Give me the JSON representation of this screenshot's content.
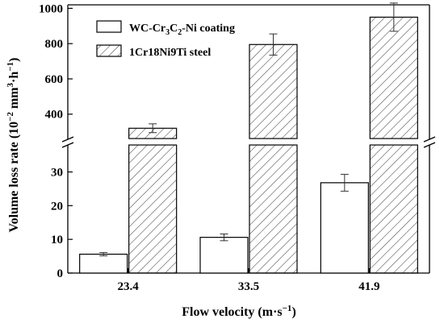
{
  "chart_data": {
    "type": "bar",
    "xlabel_main": "Flow velocity (m·s",
    "xlabel_sup": "−1",
    "xlabel_close": ")",
    "ylabel_main": "Volume loss rate (10",
    "ylabel_sup1": "−2",
    "ylabel_mid1": " mm",
    "ylabel_sup2": "3",
    "ylabel_mid2": "·h",
    "ylabel_sup3": "−1",
    "ylabel_close": ")",
    "categories": [
      "23.4",
      "33.5",
      "41.9"
    ],
    "series": [
      {
        "name": "WC-Cr3C2-Ni coating",
        "legend_parts": [
          "WC-Cr",
          "3",
          "C",
          "2",
          "-Ni coating"
        ],
        "fill": "plain",
        "values": [
          5.6,
          10.6,
          26.8
        ],
        "errors": [
          0.5,
          1.0,
          2.5
        ]
      },
      {
        "name": "1Cr18Ni9Ti steel",
        "legend_parts": [
          "1Cr18Ni9Ti steel"
        ],
        "fill": "hatched",
        "values": [
          320,
          795,
          950
        ],
        "errors": [
          25,
          60,
          80
        ]
      }
    ],
    "broken_y_axis": true,
    "ylim_lower": [
      0,
      38
    ],
    "ylim_upper": [
      280,
      1020
    ],
    "yticks_lower": [
      0,
      10,
      20,
      30
    ],
    "yticks_upper": [
      400,
      600,
      800,
      1000
    ],
    "legend_position": "top-left",
    "grid": false,
    "colors": {
      "bar_stroke": "#000000",
      "bar_fill": "#ffffff",
      "hatch": "#555555"
    }
  }
}
